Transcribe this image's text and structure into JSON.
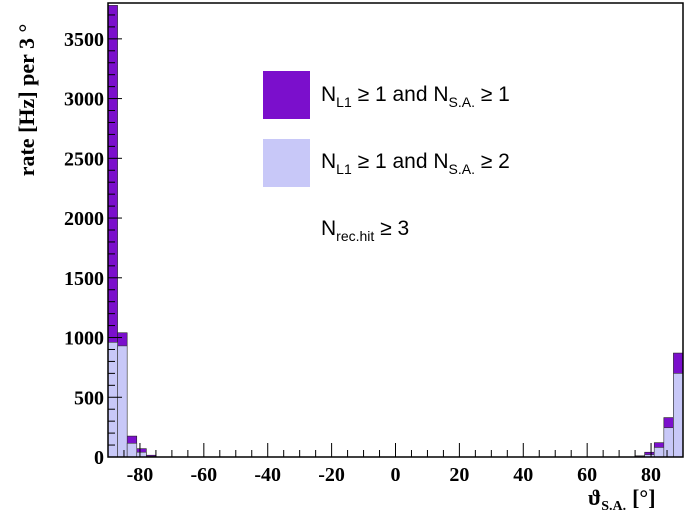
{
  "chart_data": {
    "type": "bar",
    "ylabel": "rate [Hz] per 3 °",
    "xlabel_main": "ϑ",
    "xlabel_sub": "S.A.",
    "xlabel_unit": "[°]",
    "xlim": [
      -90,
      90
    ],
    "ylim": [
      0,
      3800
    ],
    "bin_width": 3,
    "x_ticks": [
      -80,
      -60,
      -40,
      -20,
      0,
      20,
      40,
      60,
      80
    ],
    "x_tick_labels": [
      "-80",
      "-60",
      "-40",
      "-20",
      "0",
      "20",
      "40",
      "60",
      "80"
    ],
    "y_ticks": [
      0,
      500,
      1000,
      1500,
      2000,
      2500,
      3000,
      3500
    ],
    "y_tick_labels": [
      "0",
      "500",
      "1000",
      "1500",
      "2000",
      "2500",
      "3000",
      "3500"
    ],
    "grid": false,
    "legend_position": "top-center",
    "bin_edges_left": [
      -90,
      -87,
      -84,
      -81,
      -78,
      75,
      78,
      81,
      84,
      87
    ],
    "series": [
      {
        "legend_main": "N",
        "legend_sub1": "L1",
        "legend_mid": " ≥ 1 and N",
        "legend_sub2": "S.A.",
        "legend_end": " ≥ 1",
        "color": "#7b0fcc",
        "values": [
          3780,
          1040,
          175,
          70,
          15,
          10,
          40,
          120,
          330,
          870
        ]
      },
      {
        "legend_main": "N",
        "legend_sub1": "L1",
        "legend_mid": " ≥ 1 and N",
        "legend_sub2": "S.A.",
        "legend_end": " ≥ 2",
        "color": "#c8c8f8",
        "values": [
          960,
          930,
          115,
          40,
          5,
          5,
          20,
          80,
          245,
          700
        ]
      }
    ],
    "annotation": {
      "main": "N",
      "sub": "rec.hit",
      "end": " ≥ 3"
    }
  }
}
